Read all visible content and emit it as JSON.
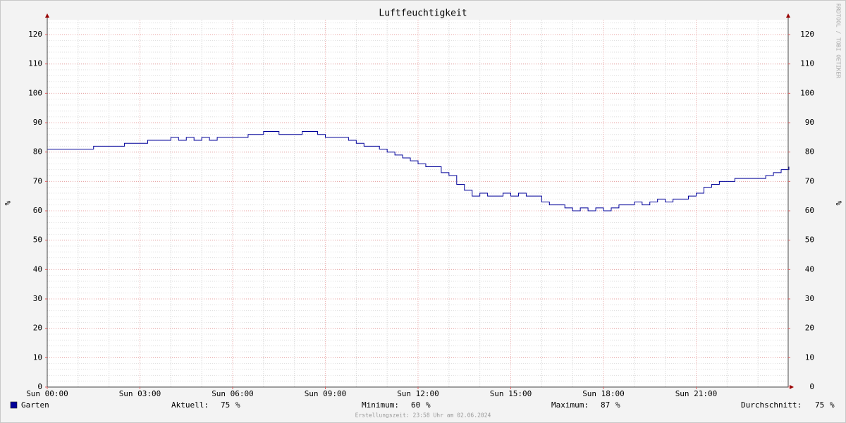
{
  "chart_data": {
    "type": "line",
    "title": "Luftfeuchtigkeit",
    "ylabel": "%",
    "watermark": "RRDTOOL / TOBI OETIKER",
    "footer": "Erstellungszeit: 23:58 Uhr am 02.06.2024",
    "xlim": [
      0,
      24
    ],
    "xticks": [
      {
        "value": 0,
        "label": "Sun 00:00"
      },
      {
        "value": 3,
        "label": "Sun 03:00"
      },
      {
        "value": 6,
        "label": "Sun 06:00"
      },
      {
        "value": 9,
        "label": "Sun 09:00"
      },
      {
        "value": 12,
        "label": "Sun 12:00"
      },
      {
        "value": 15,
        "label": "Sun 15:00"
      },
      {
        "value": 18,
        "label": "Sun 18:00"
      },
      {
        "value": 21,
        "label": "Sun 21:00"
      }
    ],
    "xgrid": [
      1,
      2,
      4,
      5,
      7,
      8,
      10,
      11,
      13,
      14,
      16,
      17,
      19,
      20,
      22,
      23
    ],
    "ylim": [
      0,
      125
    ],
    "yticks": [
      0,
      10,
      20,
      30,
      40,
      50,
      60,
      70,
      80,
      90,
      100,
      110,
      120
    ],
    "yminor": 2,
    "grid": true,
    "x": [
      0,
      0.25,
      0.5,
      0.75,
      1,
      1.25,
      1.5,
      1.75,
      2,
      2.25,
      2.5,
      2.75,
      3,
      3.25,
      3.5,
      3.75,
      4,
      4.25,
      4.5,
      4.75,
      5,
      5.25,
      5.5,
      5.75,
      6,
      6.25,
      6.5,
      6.75,
      7,
      7.25,
      7.5,
      7.75,
      8,
      8.25,
      8.5,
      8.75,
      9,
      9.25,
      9.5,
      9.75,
      10,
      10.25,
      10.5,
      10.75,
      11,
      11.25,
      11.5,
      11.75,
      12,
      12.25,
      12.5,
      12.75,
      13,
      13.25,
      13.5,
      13.75,
      14,
      14.25,
      14.5,
      14.75,
      15,
      15.25,
      15.5,
      15.75,
      16,
      16.25,
      16.5,
      16.75,
      17,
      17.25,
      17.5,
      17.75,
      18,
      18.25,
      18.5,
      18.75,
      19,
      19.25,
      19.5,
      19.75,
      20,
      20.25,
      20.5,
      20.75,
      21,
      21.25,
      21.5,
      21.75,
      22,
      22.25,
      22.5,
      22.75,
      23,
      23.25,
      23.5,
      23.75,
      24
    ],
    "series": [
      {
        "name": "Garten",
        "color": "#000099",
        "values": [
          81,
          81,
          81,
          81,
          81,
          81,
          82,
          82,
          82,
          82,
          83,
          83,
          83,
          84,
          84,
          84,
          85,
          84,
          85,
          84,
          85,
          84,
          85,
          85,
          85,
          85,
          86,
          86,
          87,
          87,
          86,
          86,
          86,
          87,
          87,
          86,
          85,
          85,
          85,
          84,
          83,
          82,
          82,
          81,
          80,
          79,
          78,
          77,
          76,
          75,
          75,
          73,
          72,
          69,
          67,
          65,
          66,
          65,
          65,
          66,
          65,
          66,
          65,
          65,
          63,
          62,
          62,
          61,
          60,
          61,
          60,
          61,
          60,
          61,
          62,
          62,
          63,
          62,
          63,
          64,
          63,
          64,
          64,
          65,
          66,
          68,
          69,
          70,
          70,
          71,
          71,
          71,
          71,
          72,
          73,
          74,
          75
        ]
      }
    ],
    "unit": "%",
    "stats": [
      {
        "label": "Aktuell:",
        "value": 75
      },
      {
        "label": "Minimum:",
        "value": 60
      },
      {
        "label": "Maximum:",
        "value": 87
      },
      {
        "label": "Durchschnitt:",
        "value": 75
      }
    ]
  }
}
